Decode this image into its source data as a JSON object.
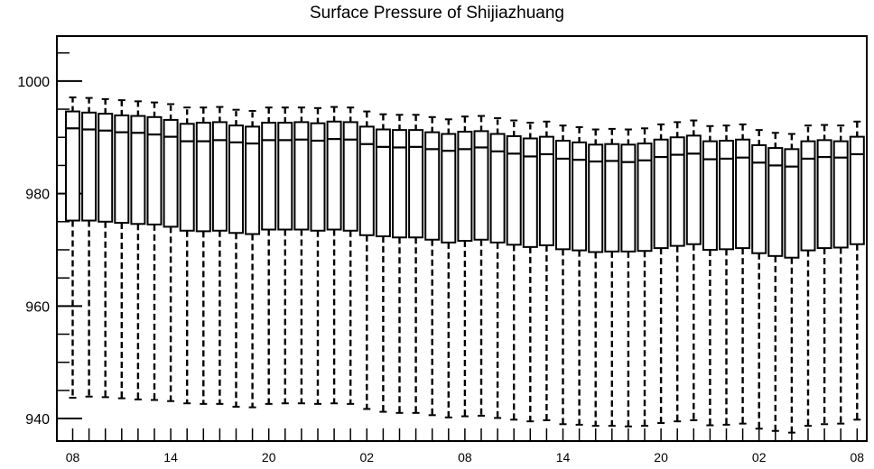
{
  "chart_data": {
    "type": "box",
    "title": "Surface Pressure of Shijiazhuang",
    "xlabel": "",
    "ylabel": "",
    "ylim": [
      936,
      1008
    ],
    "yticks": [
      940,
      960,
      980,
      1000
    ],
    "x_tick_labels": [
      "08",
      "14",
      "20",
      "02",
      "08",
      "14",
      "20",
      "02",
      "08"
    ],
    "x_tick_positions": [
      0,
      6,
      12,
      18,
      24,
      30,
      36,
      42,
      48
    ],
    "grid": false,
    "box_color": "#000000",
    "boxes": [
      {
        "x": 0,
        "whisker_low": 943.7,
        "q1": 975.2,
        "median": 991.6,
        "q3": 994.6,
        "whisker_high": 997.1
      },
      {
        "x": 1,
        "whisker_low": 943.9,
        "q1": 975.2,
        "median": 991.4,
        "q3": 994.4,
        "whisker_high": 997.0
      },
      {
        "x": 2,
        "whisker_low": 943.8,
        "q1": 975.0,
        "median": 991.2,
        "q3": 994.2,
        "whisker_high": 996.8
      },
      {
        "x": 3,
        "whisker_low": 943.6,
        "q1": 974.8,
        "median": 990.9,
        "q3": 993.9,
        "whisker_high": 996.6
      },
      {
        "x": 4,
        "whisker_low": 943.4,
        "q1": 974.6,
        "median": 990.8,
        "q3": 993.8,
        "whisker_high": 996.4
      },
      {
        "x": 5,
        "whisker_low": 943.3,
        "q1": 974.5,
        "median": 990.5,
        "q3": 993.6,
        "whisker_high": 996.2
      },
      {
        "x": 6,
        "whisker_low": 943.1,
        "q1": 974.1,
        "median": 990.1,
        "q3": 993.1,
        "whisker_high": 995.9
      },
      {
        "x": 7,
        "whisker_low": 942.7,
        "q1": 973.4,
        "median": 989.3,
        "q3": 992.4,
        "whisker_high": 995.3
      },
      {
        "x": 8,
        "whisker_low": 942.6,
        "q1": 973.3,
        "median": 989.3,
        "q3": 992.6,
        "whisker_high": 995.3
      },
      {
        "x": 9,
        "whisker_low": 942.6,
        "q1": 973.4,
        "median": 989.5,
        "q3": 992.7,
        "whisker_high": 995.4
      },
      {
        "x": 10,
        "whisker_low": 942.1,
        "q1": 973.0,
        "median": 989.1,
        "q3": 992.1,
        "whisker_high": 994.9
      },
      {
        "x": 11,
        "whisker_low": 942.0,
        "q1": 972.8,
        "median": 988.9,
        "q3": 991.9,
        "whisker_high": 994.7
      },
      {
        "x": 12,
        "whisker_low": 942.6,
        "q1": 973.6,
        "median": 989.5,
        "q3": 992.6,
        "whisker_high": 995.3
      },
      {
        "x": 13,
        "whisker_low": 942.7,
        "q1": 973.6,
        "median": 989.5,
        "q3": 992.6,
        "whisker_high": 995.3
      },
      {
        "x": 14,
        "whisker_low": 942.7,
        "q1": 973.6,
        "median": 989.6,
        "q3": 992.7,
        "whisker_high": 995.3
      },
      {
        "x": 15,
        "whisker_low": 942.6,
        "q1": 973.4,
        "median": 989.4,
        "q3": 992.5,
        "whisker_high": 995.2
      },
      {
        "x": 16,
        "whisker_low": 942.7,
        "q1": 973.6,
        "median": 989.7,
        "q3": 992.8,
        "whisker_high": 995.4
      },
      {
        "x": 17,
        "whisker_low": 942.6,
        "q1": 973.4,
        "median": 989.6,
        "q3": 992.7,
        "whisker_high": 995.3
      },
      {
        "x": 18,
        "whisker_low": 941.7,
        "q1": 972.6,
        "median": 988.8,
        "q3": 991.9,
        "whisker_high": 994.6
      },
      {
        "x": 19,
        "whisker_low": 941.2,
        "q1": 972.4,
        "median": 988.3,
        "q3": 991.4,
        "whisker_high": 994.1
      },
      {
        "x": 20,
        "whisker_low": 941.0,
        "q1": 972.2,
        "median": 988.2,
        "q3": 991.3,
        "whisker_high": 994.0
      },
      {
        "x": 21,
        "whisker_low": 941.0,
        "q1": 972.2,
        "median": 988.3,
        "q3": 991.3,
        "whisker_high": 994.0
      },
      {
        "x": 22,
        "whisker_low": 940.6,
        "q1": 971.8,
        "median": 987.9,
        "q3": 990.9,
        "whisker_high": 993.6
      },
      {
        "x": 23,
        "whisker_low": 940.2,
        "q1": 971.3,
        "median": 987.6,
        "q3": 990.6,
        "whisker_high": 993.2
      },
      {
        "x": 24,
        "whisker_low": 940.4,
        "q1": 971.6,
        "median": 987.9,
        "q3": 991.0,
        "whisker_high": 993.7
      },
      {
        "x": 25,
        "whisker_low": 940.5,
        "q1": 971.8,
        "median": 988.2,
        "q3": 991.1,
        "whisker_high": 993.8
      },
      {
        "x": 26,
        "whisker_low": 940.1,
        "q1": 971.3,
        "median": 987.5,
        "q3": 990.6,
        "whisker_high": 993.4
      },
      {
        "x": 27,
        "whisker_low": 939.8,
        "q1": 970.9,
        "median": 987.1,
        "q3": 990.2,
        "whisker_high": 993.0
      },
      {
        "x": 28,
        "whisker_low": 939.5,
        "q1": 970.5,
        "median": 986.6,
        "q3": 989.8,
        "whisker_high": 992.6
      },
      {
        "x": 29,
        "whisker_low": 939.7,
        "q1": 970.8,
        "median": 987.0,
        "q3": 990.1,
        "whisker_high": 992.8
      },
      {
        "x": 30,
        "whisker_low": 939.0,
        "q1": 970.1,
        "median": 986.2,
        "q3": 989.4,
        "whisker_high": 992.1
      },
      {
        "x": 31,
        "whisker_low": 938.9,
        "q1": 969.9,
        "median": 986.0,
        "q3": 989.1,
        "whisker_high": 991.8
      },
      {
        "x": 32,
        "whisker_low": 938.7,
        "q1": 969.6,
        "median": 985.7,
        "q3": 988.7,
        "whisker_high": 991.4
      },
      {
        "x": 33,
        "whisker_low": 938.7,
        "q1": 969.7,
        "median": 985.8,
        "q3": 988.8,
        "whisker_high": 991.5
      },
      {
        "x": 34,
        "whisker_low": 938.6,
        "q1": 969.7,
        "median": 985.6,
        "q3": 988.7,
        "whisker_high": 991.4
      },
      {
        "x": 35,
        "whisker_low": 938.7,
        "q1": 969.8,
        "median": 985.9,
        "q3": 988.9,
        "whisker_high": 991.6
      },
      {
        "x": 36,
        "whisker_low": 939.2,
        "q1": 970.3,
        "median": 986.5,
        "q3": 989.6,
        "whisker_high": 992.3
      },
      {
        "x": 37,
        "whisker_low": 939.5,
        "q1": 970.7,
        "median": 986.9,
        "q3": 990.0,
        "whisker_high": 992.7
      },
      {
        "x": 38,
        "whisker_low": 939.7,
        "q1": 971.0,
        "median": 987.1,
        "q3": 990.3,
        "whisker_high": 993.0
      },
      {
        "x": 39,
        "whisker_low": 938.8,
        "q1": 970.0,
        "median": 986.1,
        "q3": 989.3,
        "whisker_high": 992.0
      },
      {
        "x": 40,
        "whisker_low": 938.9,
        "q1": 970.1,
        "median": 986.2,
        "q3": 989.4,
        "whisker_high": 992.1
      },
      {
        "x": 41,
        "whisker_low": 939.1,
        "q1": 970.3,
        "median": 986.4,
        "q3": 989.6,
        "whisker_high": 992.3
      },
      {
        "x": 42,
        "whisker_low": 938.2,
        "q1": 969.4,
        "median": 985.5,
        "q3": 988.6,
        "whisker_high": 991.3
      },
      {
        "x": 43,
        "whisker_low": 937.8,
        "q1": 968.9,
        "median": 985.0,
        "q3": 988.1,
        "whisker_high": 990.8
      },
      {
        "x": 44,
        "whisker_low": 937.5,
        "q1": 968.6,
        "median": 984.8,
        "q3": 987.9,
        "whisker_high": 990.6
      },
      {
        "x": 45,
        "whisker_low": 938.7,
        "q1": 969.9,
        "median": 986.2,
        "q3": 989.3,
        "whisker_high": 992.1
      },
      {
        "x": 46,
        "whisker_low": 939.0,
        "q1": 970.3,
        "median": 986.5,
        "q3": 989.5,
        "whisker_high": 992.2
      },
      {
        "x": 47,
        "whisker_low": 939.1,
        "q1": 970.4,
        "median": 986.4,
        "q3": 989.3,
        "whisker_high": 992.1
      },
      {
        "x": 48,
        "whisker_low": 939.8,
        "q1": 971.0,
        "median": 987.0,
        "q3": 990.1,
        "whisker_high": 992.8
      }
    ]
  }
}
